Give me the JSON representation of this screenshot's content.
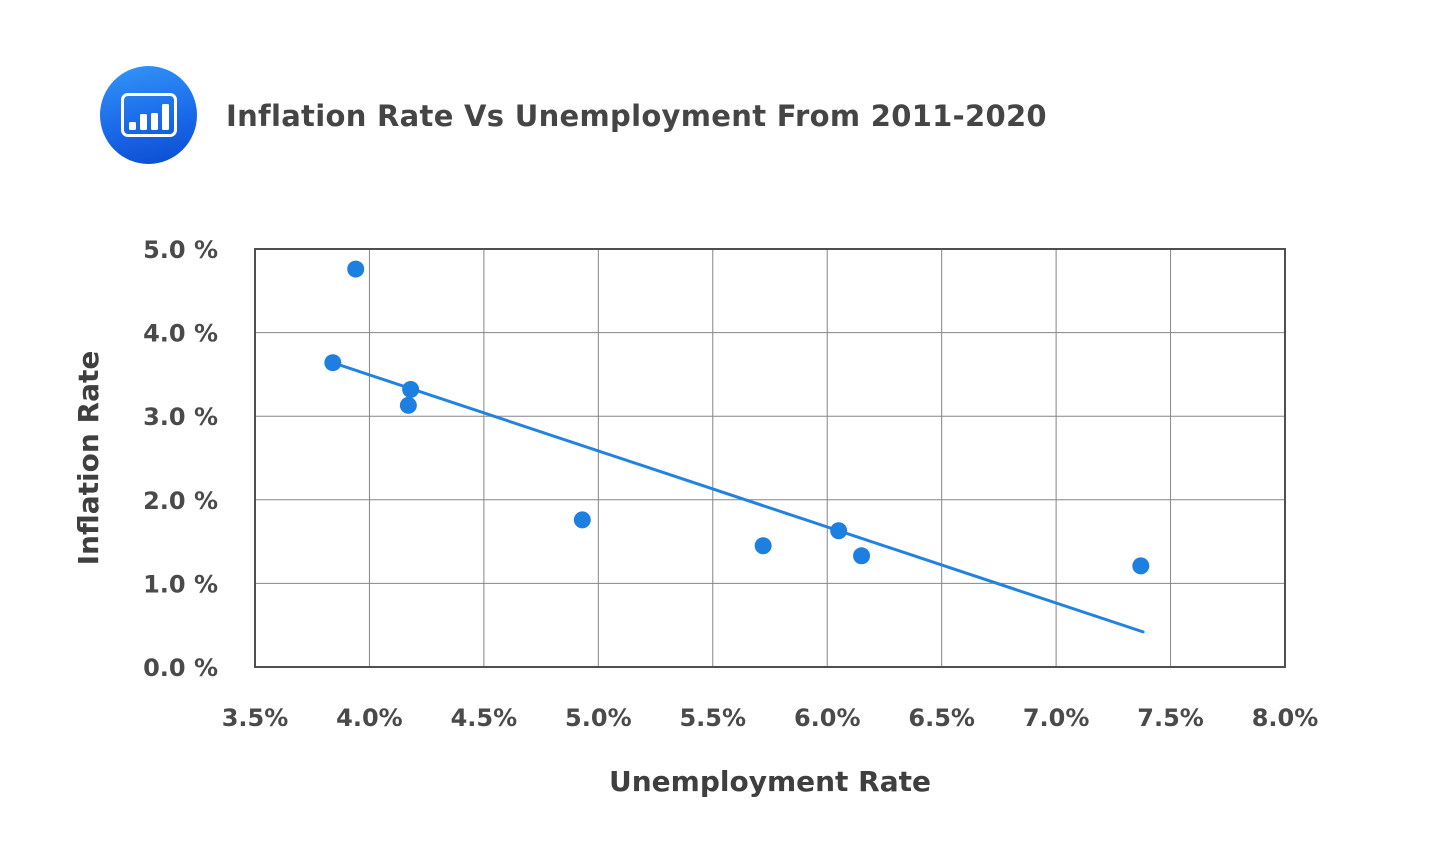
{
  "header": {
    "title": "Inflation Rate Vs Unemployment From 2011-2020",
    "icon": "bar-chart-icon",
    "icon_colors": {
      "circle_top": "#3396f7",
      "circle_bottom": "#0a4ccf",
      "glyph": "#ffffff"
    }
  },
  "chart_data": {
    "type": "scatter",
    "title": "Inflation Rate Vs Unemployment From 2011-2020",
    "xlabel": "Unemployment Rate",
    "ylabel": "Inflation Rate",
    "xlim": [
      3.5,
      8.0
    ],
    "ylim": [
      0.0,
      5.0
    ],
    "x_tick_values": [
      3.5,
      4.0,
      4.5,
      5.0,
      5.5,
      6.0,
      6.5,
      7.0,
      7.5,
      8.0
    ],
    "x_tick_labels": [
      "3.5%",
      "4.0%",
      "4.5%",
      "5.0%",
      "5.5%",
      "6.0%",
      "6.5%",
      "7.0%",
      "7.5%",
      "8.0%"
    ],
    "y_tick_values": [
      0,
      1,
      2,
      3,
      4,
      5
    ],
    "y_tick_labels": [
      "0.0 %",
      "1.0 %",
      "2.0 %",
      "3.0 %",
      "4.0 %",
      "5.0 %"
    ],
    "grid": true,
    "legend": "none",
    "point_color": "#1d7fe0",
    "trend_color": "#2282e2",
    "points": [
      {
        "x": 3.84,
        "y": 3.64
      },
      {
        "x": 3.94,
        "y": 4.76
      },
      {
        "x": 4.17,
        "y": 3.13
      },
      {
        "x": 4.18,
        "y": 3.32
      },
      {
        "x": 4.93,
        "y": 1.76
      },
      {
        "x": 5.72,
        "y": 1.45
      },
      {
        "x": 6.05,
        "y": 1.63
      },
      {
        "x": 6.15,
        "y": 1.33
      },
      {
        "x": 7.37,
        "y": 1.21
      }
    ],
    "trendline": {
      "x1": 3.84,
      "y1": 3.64,
      "x2": 7.38,
      "y2": 0.42
    }
  }
}
